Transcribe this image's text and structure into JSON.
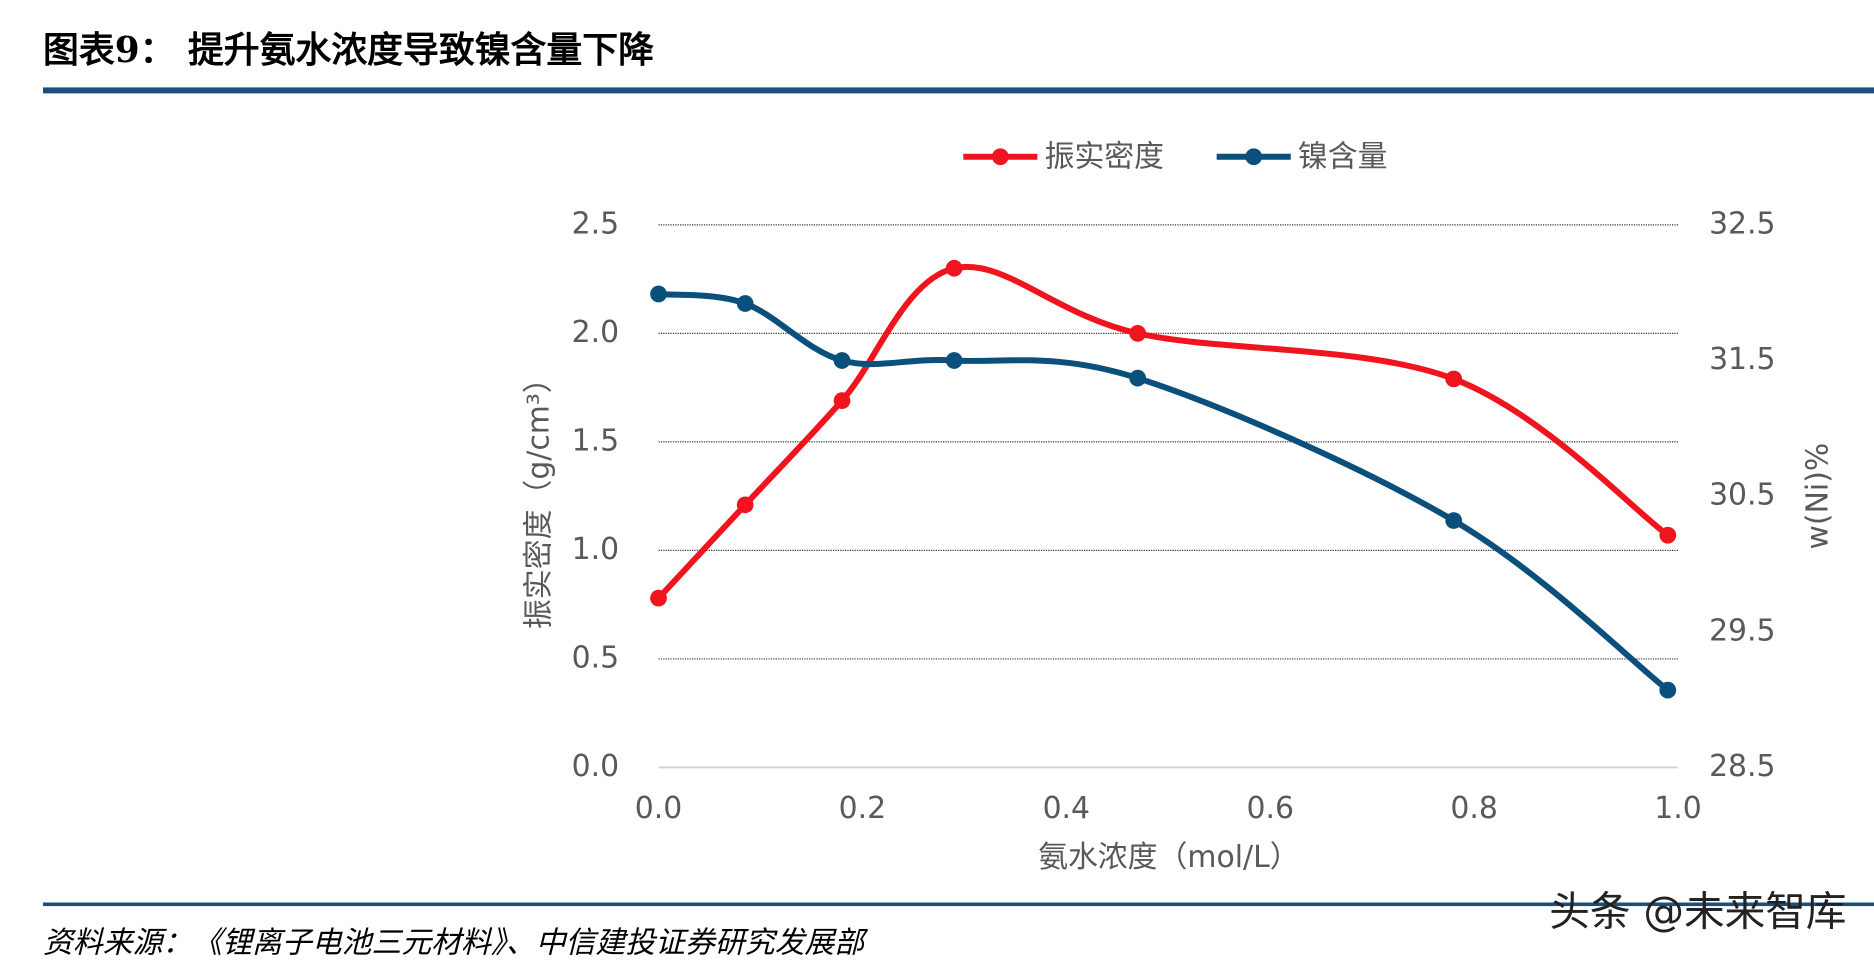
{
  "chart_data": {
    "type": "line",
    "title": "图表9：  提升氨水浓度导致镍含量下降",
    "source": "资料来源：《锂离子电池三元材料》、中信建投证券研究发展部",
    "watermark": "头条 @未来智库",
    "x_label": "氨水浓度（mol/L）",
    "y_label": "振实密度（g/cm³）",
    "y2_label": "w(Ni)%",
    "x": [
      0,
      0.085,
      0.18,
      0.29,
      0.47,
      0.78,
      0.99
    ],
    "series": [
      {
        "name": "振实密度",
        "color": "#f0141e",
        "values": [
          0.78,
          1.21,
          1.69,
          2.3,
          2.0,
          1.79,
          1.07
        ]
      },
      {
        "name": "镍含量",
        "color": "#0b4f7c",
        "axis": "y2",
        "values": [
          31.99,
          31.92,
          31.5,
          31.5,
          31.37,
          30.32,
          29.07
        ]
      }
    ],
    "xlim": [
      0,
      1
    ],
    "xticks": [
      {
        "value": 0,
        "label": "0.0"
      },
      0.2,
      0.4,
      0.6,
      0.8,
      {
        "value": 1,
        "label": "1.0"
      }
    ],
    "ylim": [
      0,
      2.5
    ],
    "yticks": [
      {
        "value": 0,
        "label": "0.0"
      },
      0.5,
      {
        "value": 1,
        "label": "1.0"
      },
      1.5,
      {
        "value": 2,
        "label": "2.0"
      },
      2.5
    ],
    "y2lim": [
      28.5,
      32.5
    ],
    "y2ticks": [
      28.5,
      29.5,
      30.5,
      31.5,
      32.5
    ],
    "grid": true,
    "smooth": true,
    "legend": "top"
  }
}
